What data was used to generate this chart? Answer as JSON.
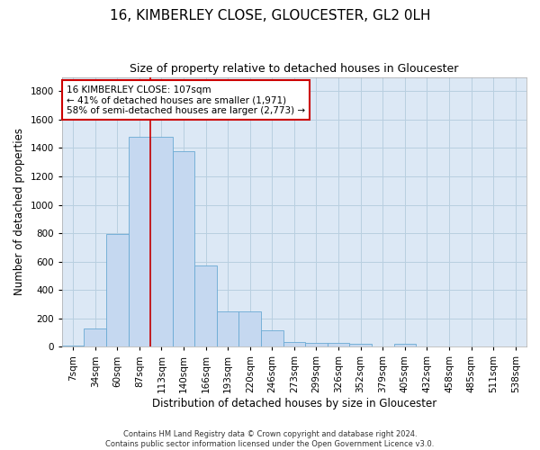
{
  "title": "16, KIMBERLEY CLOSE, GLOUCESTER, GL2 0LH",
  "subtitle": "Size of property relative to detached houses in Gloucester",
  "xlabel": "Distribution of detached houses by size in Gloucester",
  "ylabel": "Number of detached properties",
  "bin_labels": [
    "7sqm",
    "34sqm",
    "60sqm",
    "87sqm",
    "113sqm",
    "140sqm",
    "166sqm",
    "193sqm",
    "220sqm",
    "246sqm",
    "273sqm",
    "299sqm",
    "326sqm",
    "352sqm",
    "379sqm",
    "405sqm",
    "432sqm",
    "458sqm",
    "485sqm",
    "511sqm",
    "538sqm"
  ],
  "bar_heights": [
    10,
    130,
    795,
    1480,
    1480,
    1380,
    570,
    250,
    250,
    115,
    35,
    30,
    30,
    20,
    0,
    20,
    0,
    0,
    0,
    0,
    0
  ],
  "bar_color": "#c5d8f0",
  "bar_edgecolor": "#6aaad4",
  "vline_x_index": 4,
  "vline_color": "#cc0000",
  "annotation_line1": "16 KIMBERLEY CLOSE: 107sqm",
  "annotation_line2": "← 41% of detached houses are smaller (1,971)",
  "annotation_line3": "58% of semi-detached houses are larger (2,773) →",
  "annotation_box_color": "#cc0000",
  "ylim": [
    0,
    1900
  ],
  "yticks": [
    0,
    200,
    400,
    600,
    800,
    1000,
    1200,
    1400,
    1600,
    1800
  ],
  "footer1": "Contains HM Land Registry data © Crown copyright and database right 2024.",
  "footer2": "Contains public sector information licensed under the Open Government Licence v3.0.",
  "title_fontsize": 11,
  "subtitle_fontsize": 9,
  "xlabel_fontsize": 8.5,
  "ylabel_fontsize": 8.5,
  "tick_fontsize": 7.5,
  "annotation_fontsize": 7.5,
  "footer_fontsize": 6,
  "ax_facecolor": "#dce8f5",
  "background_color": "#ffffff",
  "grid_color": "#b8cfe0"
}
